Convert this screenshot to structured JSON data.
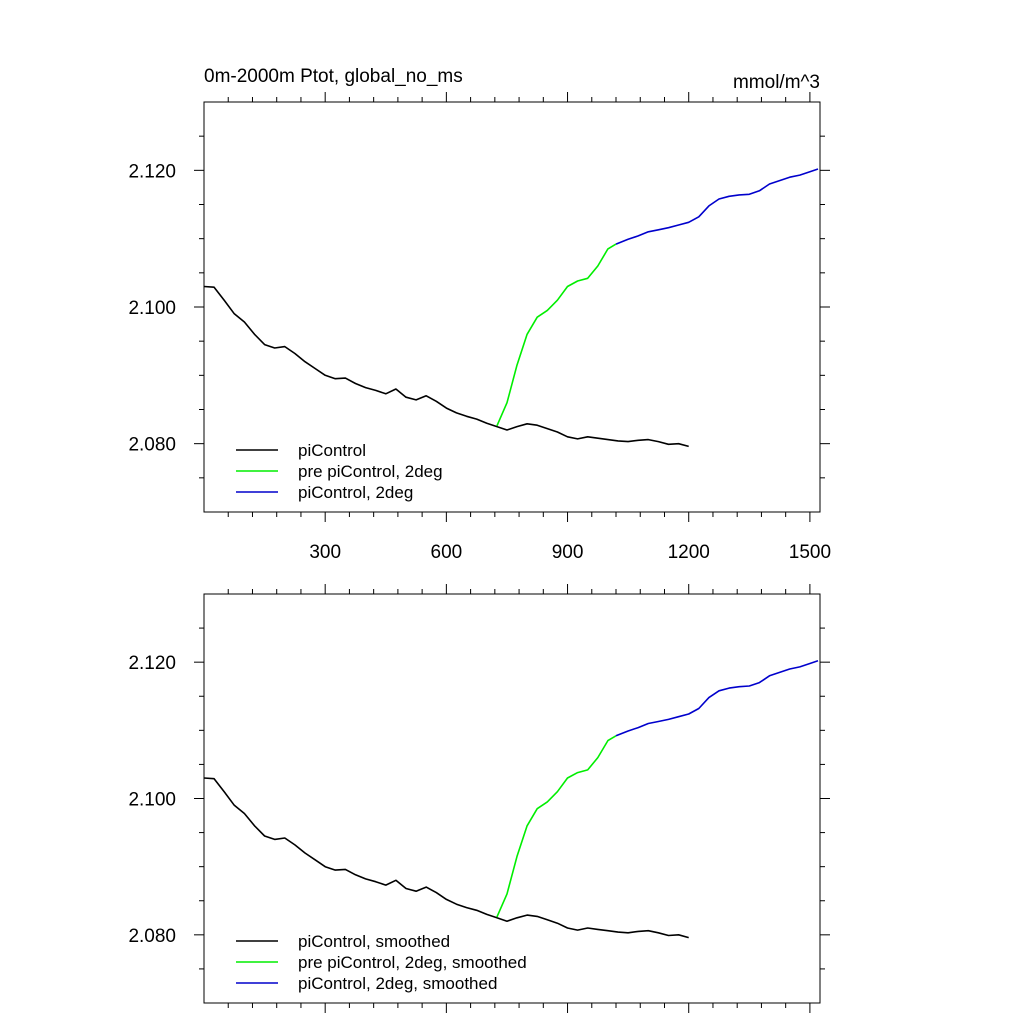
{
  "chart_data": [
    {
      "type": "line",
      "title": "0m-2000m Ptot, global_no_ms",
      "units": "mmol/m^3",
      "xlim": [
        0,
        1525
      ],
      "ylim": [
        2.07,
        2.13
      ],
      "xticks": [
        300,
        600,
        900,
        1200,
        1500
      ],
      "xtick_labels": [
        "300",
        "600",
        "900",
        "1200",
        "1500"
      ],
      "yticks": [
        2.08,
        2.1,
        2.12
      ],
      "ytick_labels": [
        "2.080",
        "2.100",
        "2.120"
      ],
      "legend_position": "bottom-left",
      "series": [
        {
          "name": "piControl",
          "color": "#000000",
          "x": [
            0,
            25,
            50,
            75,
            100,
            125,
            150,
            175,
            200,
            225,
            250,
            275,
            300,
            325,
            350,
            375,
            400,
            425,
            450,
            475,
            500,
            525,
            550,
            575,
            600,
            625,
            650,
            675,
            700,
            725,
            750,
            775,
            800,
            825,
            850,
            875,
            900,
            925,
            950,
            975,
            1000,
            1025,
            1050,
            1075,
            1100,
            1125,
            1150,
            1175,
            1200
          ],
          "y": [
            2.103,
            2.1029,
            2.101,
            2.099,
            2.0978,
            2.096,
            2.0945,
            2.094,
            2.0942,
            2.0932,
            2.092,
            2.091,
            2.09,
            2.0895,
            2.0896,
            2.0888,
            2.0882,
            2.0878,
            2.0873,
            2.088,
            2.0868,
            2.0864,
            2.087,
            2.0862,
            2.0852,
            2.0845,
            2.084,
            2.0836,
            2.083,
            2.0825,
            2.082,
            2.0825,
            2.0829,
            2.0827,
            2.0822,
            2.0817,
            2.081,
            2.0807,
            2.081,
            2.0808,
            2.0806,
            2.0804,
            2.0803,
            2.0805,
            2.0806,
            2.0803,
            2.0799,
            2.08,
            2.0796
          ]
        },
        {
          "name": "pre piControl, 2deg",
          "color": "#00ee00",
          "x": [
            725,
            750,
            775,
            800,
            825,
            850,
            875,
            900,
            925,
            950,
            975,
            1000,
            1020
          ],
          "y": [
            2.0826,
            2.086,
            2.0915,
            2.096,
            2.0985,
            2.0995,
            2.101,
            2.103,
            2.1038,
            2.1042,
            2.106,
            2.1085,
            2.1092
          ]
        },
        {
          "name": "piControl, 2deg",
          "color": "#0000cc",
          "x": [
            1020,
            1050,
            1075,
            1100,
            1125,
            1150,
            1175,
            1200,
            1225,
            1250,
            1275,
            1300,
            1325,
            1350,
            1375,
            1400,
            1425,
            1450,
            1475,
            1500,
            1520
          ],
          "y": [
            2.1092,
            2.1099,
            2.1104,
            2.111,
            2.1113,
            2.1116,
            2.112,
            2.1124,
            2.1132,
            2.1148,
            2.1158,
            2.1162,
            2.1164,
            2.1165,
            2.117,
            2.118,
            2.1185,
            2.119,
            2.1193,
            2.1198,
            2.1202
          ]
        }
      ]
    },
    {
      "type": "line",
      "xlim": [
        0,
        1525
      ],
      "ylim": [
        2.07,
        2.13
      ],
      "xticks": [
        300,
        600,
        900,
        1200,
        1500
      ],
      "yticks": [
        2.08,
        2.1,
        2.12
      ],
      "ytick_labels": [
        "2.080",
        "2.100",
        "2.120"
      ],
      "legend_position": "bottom-left",
      "series": [
        {
          "name": "piControl, smoothed",
          "color": "#000000",
          "x": [
            0,
            25,
            50,
            75,
            100,
            125,
            150,
            175,
            200,
            225,
            250,
            275,
            300,
            325,
            350,
            375,
            400,
            425,
            450,
            475,
            500,
            525,
            550,
            575,
            600,
            625,
            650,
            675,
            700,
            725,
            750,
            775,
            800,
            825,
            850,
            875,
            900,
            925,
            950,
            975,
            1000,
            1025,
            1050,
            1075,
            1100,
            1125,
            1150,
            1175,
            1200
          ],
          "y": [
            2.103,
            2.1029,
            2.101,
            2.099,
            2.0978,
            2.096,
            2.0945,
            2.094,
            2.0942,
            2.0932,
            2.092,
            2.091,
            2.09,
            2.0895,
            2.0896,
            2.0888,
            2.0882,
            2.0878,
            2.0873,
            2.088,
            2.0868,
            2.0864,
            2.087,
            2.0862,
            2.0852,
            2.0845,
            2.084,
            2.0836,
            2.083,
            2.0825,
            2.082,
            2.0825,
            2.0829,
            2.0827,
            2.0822,
            2.0817,
            2.081,
            2.0807,
            2.081,
            2.0808,
            2.0806,
            2.0804,
            2.0803,
            2.0805,
            2.0806,
            2.0803,
            2.0799,
            2.08,
            2.0796
          ]
        },
        {
          "name": "pre piControl, 2deg, smoothed",
          "color": "#00ee00",
          "x": [
            725,
            750,
            775,
            800,
            825,
            850,
            875,
            900,
            925,
            950,
            975,
            1000,
            1020
          ],
          "y": [
            2.0826,
            2.086,
            2.0915,
            2.096,
            2.0985,
            2.0995,
            2.101,
            2.103,
            2.1038,
            2.1042,
            2.106,
            2.1085,
            2.1092
          ]
        },
        {
          "name": "piControl, 2deg, smoothed",
          "color": "#0000cc",
          "x": [
            1020,
            1050,
            1075,
            1100,
            1125,
            1150,
            1175,
            1200,
            1225,
            1250,
            1275,
            1300,
            1325,
            1350,
            1375,
            1400,
            1425,
            1450,
            1475,
            1500,
            1520
          ],
          "y": [
            2.1092,
            2.1099,
            2.1104,
            2.111,
            2.1113,
            2.1116,
            2.112,
            2.1124,
            2.1132,
            2.1148,
            2.1158,
            2.1162,
            2.1164,
            2.1165,
            2.117,
            2.118,
            2.1185,
            2.119,
            2.1193,
            2.1198,
            2.1202
          ]
        }
      ]
    }
  ]
}
